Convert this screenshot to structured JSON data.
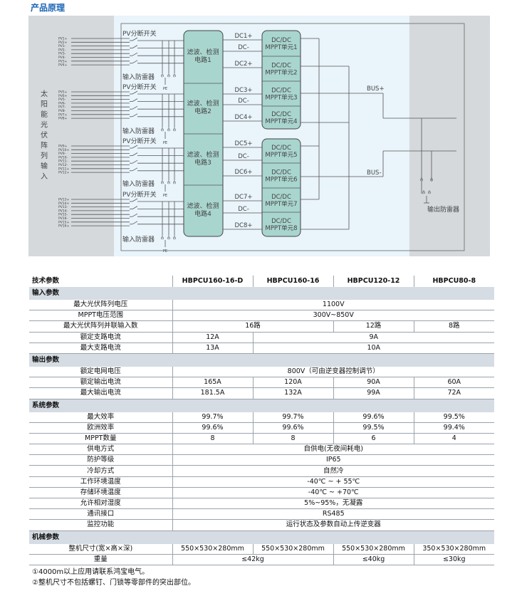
{
  "title": "产品原理",
  "diagram": {
    "left_label": [
      "太",
      "阳",
      "能",
      "光",
      "伏",
      "阵",
      "列",
      "输",
      "入"
    ],
    "groups": [
      {
        "switch_label": "PV分断开关",
        "spd_label": "输入防雷器",
        "pe": "PE",
        "filter": [
          "滤波、检测",
          "电路1"
        ],
        "pv_labels": [
          "PV1+",
          "PV2+",
          "PV1-",
          "PV2-",
          "PV3-",
          "PV4-",
          "PV3+",
          "PV4+"
        ]
      },
      {
        "switch_label": "PV分断开关",
        "spd_label": "输入防雷器",
        "pe": "PE",
        "filter": [
          "滤波、检测",
          "电路2"
        ],
        "pv_labels": [
          "PV5+",
          "PV6+",
          "PV5-",
          "PV6-",
          "PV7-",
          "PV8-",
          "PV7+",
          "PV8+"
        ]
      },
      {
        "switch_label": "PV分断开关",
        "spd_label": "输入防雷器",
        "pe": "PE",
        "filter": [
          "滤波、检测",
          "电路3"
        ],
        "pv_labels": [
          "PV9+",
          "PV10+",
          "PV9-",
          "PV10-",
          "PV11-",
          "PV12-",
          "PV11+",
          "PV12+"
        ]
      },
      {
        "switch_label": "PV分断开关",
        "spd_label": "输入防雷器",
        "pe": "PE",
        "filter": [
          "滤波、检测",
          "电路4"
        ],
        "pv_labels": [
          "PV13+",
          "PV14+",
          "PV13-",
          "PV14-",
          "PV15-",
          "PV16-",
          "PV15+",
          "PV16+"
        ]
      }
    ],
    "dc_labels": [
      "DC1+",
      "DC-",
      "DC2+",
      "DC3+",
      "DC-",
      "DC4+",
      "DC5+",
      "DC-",
      "DC6+",
      "DC7+",
      "DC-",
      "DC8+"
    ],
    "mppt_units": [
      [
        "DC/DC",
        "MPPT单元1"
      ],
      [
        "DC/DC",
        "MPPT单元2"
      ],
      [
        "DC/DC",
        "MPPT单元3"
      ],
      [
        "DC/DC",
        "MPPT单元4"
      ],
      [
        "DC/DC",
        "MPPT单元5"
      ],
      [
        "DC/DC",
        "MPPT单元6"
      ],
      [
        "DC/DC",
        "MPPT单元7"
      ],
      [
        "DC/DC",
        "MPPT单元8"
      ]
    ],
    "bus_plus": "BUS+",
    "bus_minus": "BUS-",
    "output_spd": "输出防雷器"
  },
  "table": {
    "header": [
      "技术参数",
      "HBPCU160-16-D",
      "HBPCU160-16",
      "HBPCU120-12",
      "HBPCU80-8"
    ],
    "sections": [
      {
        "title": "输入参数",
        "rows": [
          {
            "label": "最大光伏阵列电压",
            "cells": [
              {
                "text": "1100V",
                "span": 4
              }
            ]
          },
          {
            "label": "MPPT电压范围",
            "cells": [
              {
                "text": "300V~850V",
                "span": 4
              }
            ]
          },
          {
            "label": "最大光伏阵列并联输入数",
            "cells": [
              {
                "text": "16路",
                "span": 2
              },
              {
                "text": "12路",
                "span": 1
              },
              {
                "text": "8路",
                "span": 1
              }
            ]
          },
          {
            "label": "额定支路电流",
            "cells": [
              {
                "text": "12A",
                "span": 1
              },
              {
                "text": "9A",
                "span": 3
              }
            ]
          },
          {
            "label": "最大支路电流",
            "cells": [
              {
                "text": "13A",
                "span": 1
              },
              {
                "text": "10A",
                "span": 3
              }
            ]
          }
        ]
      },
      {
        "title": "输出参数",
        "rows": [
          {
            "label": "额定电网电压",
            "cells": [
              {
                "text": "800V（可由逆变器控制调节）",
                "span": 4
              }
            ]
          },
          {
            "label": "额定输出电流",
            "cells": [
              {
                "text": "165A",
                "span": 1
              },
              {
                "text": "120A",
                "span": 1
              },
              {
                "text": "90A",
                "span": 1
              },
              {
                "text": "60A",
                "span": 1
              }
            ]
          },
          {
            "label": "最大输出电流",
            "cells": [
              {
                "text": "181.5A",
                "span": 1
              },
              {
                "text": "132A",
                "span": 1
              },
              {
                "text": "99A",
                "span": 1
              },
              {
                "text": "72A",
                "span": 1
              }
            ]
          }
        ]
      },
      {
        "title": "系统参数",
        "rows": [
          {
            "label": "最大效率",
            "cells": [
              {
                "text": "99.7%",
                "span": 1
              },
              {
                "text": "99.7%",
                "span": 1
              },
              {
                "text": "99.6%",
                "span": 1
              },
              {
                "text": "99.5%",
                "span": 1
              }
            ]
          },
          {
            "label": "欧洲效率",
            "cells": [
              {
                "text": "99.6%",
                "span": 1
              },
              {
                "text": "99.6%",
                "span": 1
              },
              {
                "text": "99.5%",
                "span": 1
              },
              {
                "text": "99.4%",
                "span": 1
              }
            ]
          },
          {
            "label": "MPPT数量",
            "cells": [
              {
                "text": "8",
                "span": 1
              },
              {
                "text": "8",
                "span": 1
              },
              {
                "text": "6",
                "span": 1
              },
              {
                "text": "4",
                "span": 1
              }
            ]
          },
          {
            "label": "供电方式",
            "cells": [
              {
                "text": "自供电(无夜间耗电)",
                "span": 4
              }
            ]
          },
          {
            "label": "防护等级",
            "cells": [
              {
                "text": "IP65",
                "span": 4
              }
            ]
          },
          {
            "label": "冷却方式",
            "cells": [
              {
                "text": "自然冷",
                "span": 4
              }
            ]
          },
          {
            "label": "工作环境温度",
            "cells": [
              {
                "text": "-40℃ ~ + 55℃",
                "span": 4
              }
            ]
          },
          {
            "label": "存储环境温度",
            "cells": [
              {
                "text": "-40℃ ~ +70℃",
                "span": 4
              }
            ]
          },
          {
            "label": "允许相对湿度",
            "cells": [
              {
                "text": "5%~95%，无凝露",
                "span": 4
              }
            ]
          },
          {
            "label": "通讯接口",
            "cells": [
              {
                "text": "RS485",
                "span": 4
              }
            ]
          },
          {
            "label": "监控功能",
            "cells": [
              {
                "text": "运行状态及参数自动上传逆变器",
                "span": 4
              }
            ]
          }
        ]
      },
      {
        "title": "机械参数",
        "rows": [
          {
            "label": "整机尺寸(宽×高×深)",
            "cells": [
              {
                "text": "550×530×280mm",
                "span": 1
              },
              {
                "text": "550×530×280mm",
                "span": 1
              },
              {
                "text": "550×530×280mm",
                "span": 1
              },
              {
                "text": "350×530×280mm",
                "span": 1
              }
            ]
          },
          {
            "label": "重量",
            "cells": [
              {
                "text": "≤42kg",
                "span": 2
              },
              {
                "text": "≤40kg",
                "span": 1
              },
              {
                "text": "≤30kg",
                "span": 1
              }
            ]
          }
        ]
      }
    ]
  },
  "notes": [
    "①4000m以上应用请联系鸿宝电气。",
    "②整机尺寸不包括螺钉、门锁等零部件的突出部位。"
  ],
  "colors": {
    "title": "#1a64b4",
    "box_fill": "#a9d5cf",
    "diagram_bg": "#e9f4fb",
    "side_bg": "#d5d9dc",
    "section_bg": "#d5dce3"
  }
}
